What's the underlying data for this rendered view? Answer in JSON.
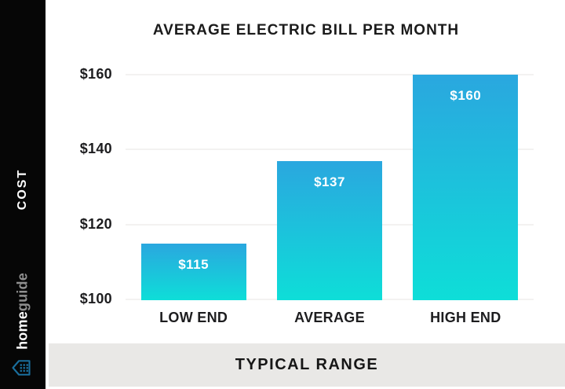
{
  "sidebar": {
    "cost_label": "COST",
    "brand": {
      "bold": "home",
      "light": "guide"
    },
    "icon": "homeguide-house-icon"
  },
  "footer": {
    "label": "TYPICAL RANGE"
  },
  "colors": {
    "bar_gradient_top": "#2aa7df",
    "bar_gradient_bottom": "#0eded8",
    "sidebar_bg": "#060606",
    "footer_bg": "#e9e8e6",
    "gridline": "#f3f2f1",
    "text_dark": "#1d1d1f",
    "brand_icon_teal": "#1a6f9e"
  },
  "chart_data": {
    "type": "bar",
    "title": "AVERAGE ELECTRIC BILL PER MONTH",
    "categories": [
      "LOW END",
      "AVERAGE",
      "HIGH END"
    ],
    "values": [
      115,
      137,
      160
    ],
    "value_labels": [
      "$115",
      "$137",
      "$160"
    ],
    "y_ticks": [
      100,
      120,
      140,
      160
    ],
    "y_tick_labels": [
      "$100",
      "$120",
      "$140",
      "$160"
    ],
    "ylim": [
      100,
      160
    ],
    "xlabel": "TYPICAL RANGE",
    "ylabel": "COST",
    "grid": true,
    "legend": false
  }
}
